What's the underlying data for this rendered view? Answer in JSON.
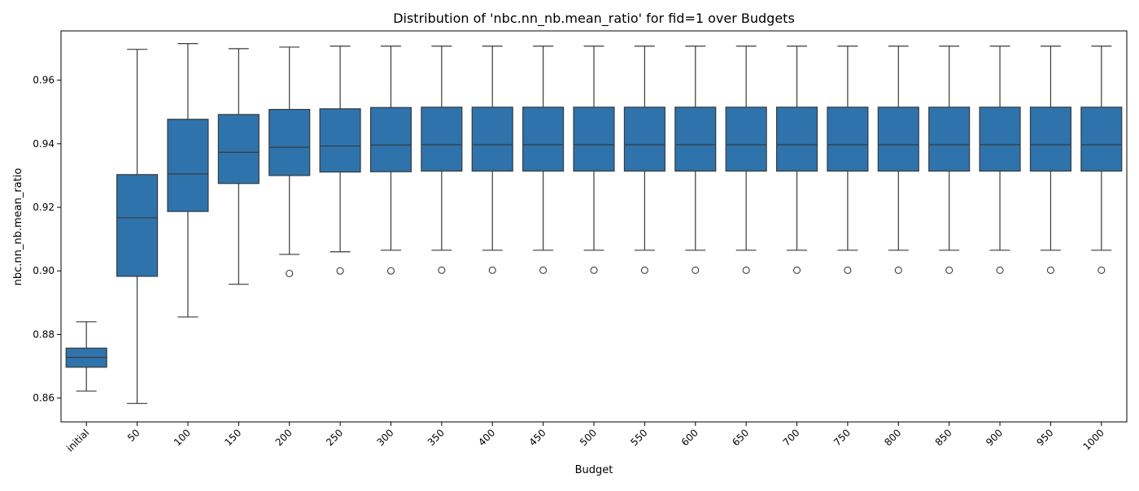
{
  "chart_data": {
    "type": "box",
    "title": "Distribution of 'nbc.nn_nb.mean_ratio' for fid=1 over Budgets",
    "xlabel": "Budget",
    "ylabel": "nbc.nn_nb.mean_ratio",
    "ylim": [
      0.8525,
      0.9755
    ],
    "yticks": [
      0.86,
      0.88,
      0.9,
      0.92,
      0.94,
      0.96
    ],
    "ytick_labels": [
      "0.86",
      "0.88",
      "0.90",
      "0.92",
      "0.94",
      "0.96"
    ],
    "categories": [
      "initial",
      "50",
      "100",
      "150",
      "200",
      "250",
      "300",
      "350",
      "400",
      "450",
      "500",
      "550",
      "600",
      "650",
      "700",
      "750",
      "800",
      "850",
      "900",
      "950",
      "1000"
    ],
    "series": [
      {
        "color": "#2e73ac",
        "boxes": [
          {
            "whisker_low": 0.8622,
            "q1": 0.8697,
            "median": 0.8728,
            "q3": 0.8757,
            "whisker_high": 0.884,
            "outliers": []
          },
          {
            "whisker_low": 0.8583,
            "q1": 0.8983,
            "median": 0.9167,
            "q3": 0.9303,
            "whisker_high": 0.9697,
            "outliers": []
          },
          {
            "whisker_low": 0.8855,
            "q1": 0.9187,
            "median": 0.9305,
            "q3": 0.9477,
            "whisker_high": 0.9715,
            "outliers": []
          },
          {
            "whisker_low": 0.8958,
            "q1": 0.9275,
            "median": 0.9373,
            "q3": 0.9492,
            "whisker_high": 0.9699,
            "outliers": []
          },
          {
            "whisker_low": 0.9052,
            "q1": 0.93,
            "median": 0.9389,
            "q3": 0.9508,
            "whisker_high": 0.9704,
            "outliers": [
              0.8992
            ]
          },
          {
            "whisker_low": 0.906,
            "q1": 0.9311,
            "median": 0.9393,
            "q3": 0.951,
            "whisker_high": 0.9707,
            "outliers": [
              0.9
            ]
          },
          {
            "whisker_low": 0.9065,
            "q1": 0.9312,
            "median": 0.9396,
            "q3": 0.9514,
            "whisker_high": 0.9707,
            "outliers": [
              0.9
            ]
          },
          {
            "whisker_low": 0.9065,
            "q1": 0.9314,
            "median": 0.9397,
            "q3": 0.9515,
            "whisker_high": 0.9707,
            "outliers": [
              0.9002
            ]
          },
          {
            "whisker_low": 0.9065,
            "q1": 0.9314,
            "median": 0.9397,
            "q3": 0.9515,
            "whisker_high": 0.9707,
            "outliers": [
              0.9002
            ]
          },
          {
            "whisker_low": 0.9065,
            "q1": 0.9314,
            "median": 0.9397,
            "q3": 0.9515,
            "whisker_high": 0.9707,
            "outliers": [
              0.9002
            ]
          },
          {
            "whisker_low": 0.9065,
            "q1": 0.9314,
            "median": 0.9397,
            "q3": 0.9515,
            "whisker_high": 0.9707,
            "outliers": [
              0.9002
            ]
          },
          {
            "whisker_low": 0.9065,
            "q1": 0.9314,
            "median": 0.9397,
            "q3": 0.9515,
            "whisker_high": 0.9707,
            "outliers": [
              0.9002
            ]
          },
          {
            "whisker_low": 0.9065,
            "q1": 0.9314,
            "median": 0.9397,
            "q3": 0.9515,
            "whisker_high": 0.9707,
            "outliers": [
              0.9002
            ]
          },
          {
            "whisker_low": 0.9065,
            "q1": 0.9314,
            "median": 0.9397,
            "q3": 0.9515,
            "whisker_high": 0.9707,
            "outliers": [
              0.9002
            ]
          },
          {
            "whisker_low": 0.9065,
            "q1": 0.9314,
            "median": 0.9397,
            "q3": 0.9515,
            "whisker_high": 0.9707,
            "outliers": [
              0.9002
            ]
          },
          {
            "whisker_low": 0.9065,
            "q1": 0.9314,
            "median": 0.9397,
            "q3": 0.9515,
            "whisker_high": 0.9707,
            "outliers": [
              0.9002
            ]
          },
          {
            "whisker_low": 0.9065,
            "q1": 0.9314,
            "median": 0.9397,
            "q3": 0.9515,
            "whisker_high": 0.9707,
            "outliers": [
              0.9002
            ]
          },
          {
            "whisker_low": 0.9065,
            "q1": 0.9314,
            "median": 0.9397,
            "q3": 0.9515,
            "whisker_high": 0.9707,
            "outliers": [
              0.9002
            ]
          },
          {
            "whisker_low": 0.9065,
            "q1": 0.9314,
            "median": 0.9397,
            "q3": 0.9515,
            "whisker_high": 0.9707,
            "outliers": [
              0.9002
            ]
          },
          {
            "whisker_low": 0.9065,
            "q1": 0.9314,
            "median": 0.9397,
            "q3": 0.9515,
            "whisker_high": 0.9707,
            "outliers": [
              0.9002
            ]
          },
          {
            "whisker_low": 0.9065,
            "q1": 0.9314,
            "median": 0.9397,
            "q3": 0.9515,
            "whisker_high": 0.9707,
            "outliers": [
              0.9002
            ]
          }
        ]
      }
    ],
    "grid": false,
    "legend": "none",
    "xtick_rotation_deg": 45
  }
}
